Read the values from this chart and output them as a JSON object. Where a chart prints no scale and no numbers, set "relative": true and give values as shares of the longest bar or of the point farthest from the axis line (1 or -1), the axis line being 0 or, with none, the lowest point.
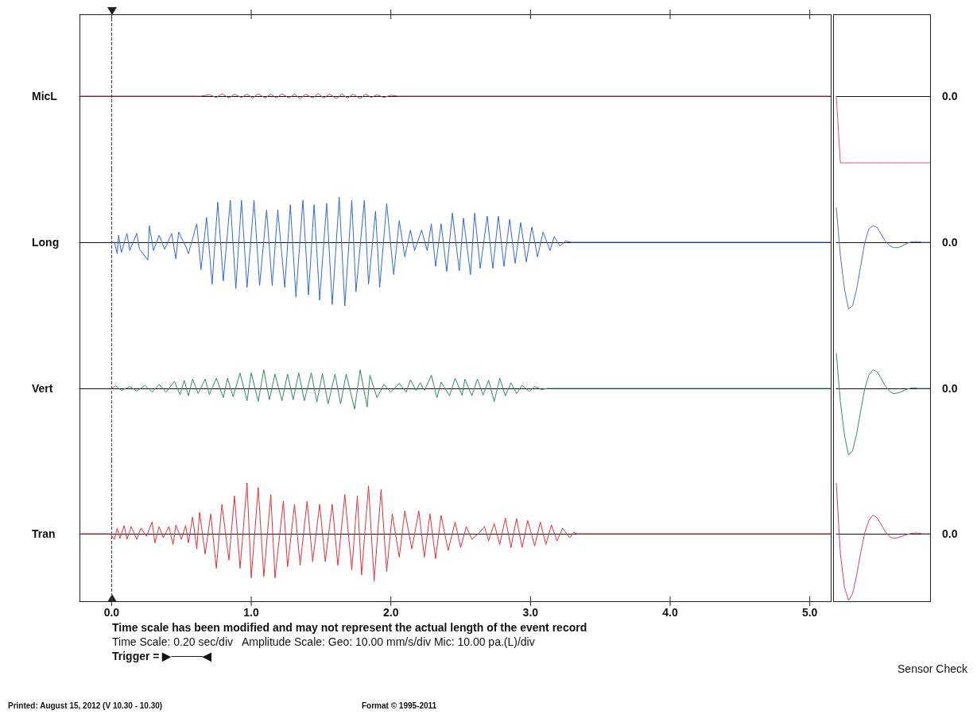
{
  "chart_data": [
    {
      "type": "line",
      "ylabel": "MicL",
      "relative": true,
      "color": "#b0406e",
      "xlim": [
        -0.23,
        5.15
      ],
      "tick_labels": false,
      "xticks": [
        {
          "value": 0,
          "label": null
        },
        {
          "value": 1,
          "label": null
        },
        {
          "value": 2,
          "label": null
        },
        {
          "value": 3,
          "label": null
        },
        {
          "value": 4,
          "label": null
        },
        {
          "value": 5,
          "label": null
        }
      ],
      "ref_lines": [
        {
          "axis": "x",
          "value": 0,
          "line_style": "dashed"
        }
      ],
      "x": [
        -0.23,
        0.64,
        0.7,
        0.75,
        0.79,
        0.84,
        0.88,
        0.93,
        0.97,
        1.01,
        1.05,
        1.1,
        1.14,
        1.18,
        1.22,
        1.27,
        1.31,
        1.35,
        1.39,
        1.44,
        1.48,
        1.52,
        1.56,
        1.61,
        1.65,
        1.69,
        1.73,
        1.78,
        1.82,
        1.86,
        1.9,
        1.95,
        2.0,
        2.05,
        5.15
      ],
      "values": [
        0,
        0,
        0.6,
        -0.6,
        1,
        -0.8,
        0.8,
        -0.6,
        0.8,
        -0.8,
        1,
        -0.8,
        0.8,
        -0.8,
        1,
        -0.8,
        0.8,
        -1,
        0.8,
        -0.8,
        1,
        -0.8,
        0.8,
        -1,
        0.8,
        -0.8,
        0.8,
        -1,
        0.8,
        -0.6,
        0.6,
        -0.6,
        0.4,
        0,
        0
      ]
    },
    {
      "type": "line",
      "ylabel": "Long",
      "relative": true,
      "color": "#2f6bd0",
      "xlim": [
        -0.23,
        5.15
      ],
      "tick_labels": false,
      "ref_lines": [
        {
          "axis": "x",
          "value": 0,
          "line_style": "dashed"
        }
      ],
      "x": [
        0,
        0.02,
        0.04,
        0.05,
        0.07,
        0.11,
        0.13,
        0.18,
        0.2,
        0.26,
        0.27,
        0.3,
        0.34,
        0.38,
        0.43,
        0.46,
        0.48,
        0.53,
        0.55,
        0.61,
        0.64,
        0.68,
        0.72,
        0.76,
        0.8,
        0.85,
        0.89,
        0.93,
        0.97,
        1.02,
        1.06,
        1.11,
        1.15,
        1.19,
        1.24,
        1.28,
        1.32,
        1.37,
        1.41,
        1.45,
        1.49,
        1.54,
        1.58,
        1.63,
        1.67,
        1.72,
        1.75,
        1.81,
        1.84,
        1.89,
        1.92,
        1.97,
        2.02,
        2.06,
        2.1,
        2.14,
        2.17,
        2.22,
        2.26,
        2.29,
        2.32,
        2.36,
        2.4,
        2.44,
        2.49,
        2.52,
        2.57,
        2.6,
        2.64,
        2.69,
        2.73,
        2.77,
        2.81,
        2.85,
        2.89,
        2.93,
        2.97,
        3.01,
        3.05,
        3.09,
        3.14,
        3.17,
        3.21,
        3.25,
        3.29,
        5.15
      ],
      "values": [
        0,
        0,
        -0.18,
        0.11,
        -0.16,
        0.14,
        -0.13,
        0.14,
        -0.11,
        -0.28,
        0.26,
        -0.13,
        0.11,
        -0.11,
        0.14,
        -0.26,
        0.16,
        -0.06,
        -0.18,
        0.29,
        -0.43,
        0.39,
        -0.66,
        0.63,
        -0.61,
        0.66,
        -0.73,
        0.66,
        -0.71,
        0.66,
        -0.68,
        0.51,
        -0.68,
        0.51,
        -0.71,
        0.59,
        -0.86,
        0.66,
        -0.83,
        0.59,
        -0.91,
        0.61,
        -0.98,
        0.71,
        -1,
        0.66,
        -0.78,
        0.66,
        -0.66,
        0.49,
        -0.71,
        0.61,
        -0.51,
        0.34,
        -0.23,
        0.19,
        -0.13,
        0.19,
        -0.13,
        0.29,
        -0.38,
        0.29,
        -0.46,
        0.46,
        -0.45,
        0.38,
        -0.51,
        0.46,
        -0.41,
        0.41,
        -0.41,
        0.41,
        -0.38,
        0.36,
        -0.33,
        0.31,
        -0.31,
        0.24,
        -0.23,
        0.16,
        -0.13,
        0.09,
        -0.06,
        0.02,
        0,
        0
      ]
    },
    {
      "type": "line",
      "ylabel": "Vert",
      "relative": true,
      "color": "#2e8b5a",
      "xlim": [
        -0.23,
        5.15
      ],
      "tick_labels": false,
      "ref_lines": [
        {
          "axis": "x",
          "value": 0,
          "line_style": "dashed"
        }
      ],
      "x": [
        0,
        0.03,
        0.07,
        0.13,
        0.18,
        0.24,
        0.29,
        0.34,
        0.39,
        0.45,
        0.49,
        0.52,
        0.55,
        0.58,
        0.62,
        0.67,
        0.7,
        0.75,
        0.8,
        0.83,
        0.87,
        0.92,
        0.97,
        1.0,
        1.05,
        1.09,
        1.13,
        1.17,
        1.22,
        1.26,
        1.3,
        1.34,
        1.38,
        1.43,
        1.47,
        1.51,
        1.55,
        1.6,
        1.64,
        1.68,
        1.74,
        1.78,
        1.83,
        1.85,
        1.9,
        1.95,
        2.0,
        2.06,
        2.11,
        2.14,
        2.18,
        2.21,
        2.24,
        2.29,
        2.33,
        2.36,
        2.42,
        2.46,
        2.51,
        2.53,
        2.58,
        2.62,
        2.66,
        2.7,
        2.74,
        2.78,
        2.82,
        2.86,
        2.9,
        2.94,
        2.99,
        3.03,
        3.08,
        3.12,
        5.15
      ],
      "values": [
        0,
        0.12,
        -0.1,
        0.09,
        -0.13,
        0.15,
        -0.18,
        0.19,
        -0.18,
        0.34,
        -0.3,
        0.39,
        -0.36,
        0.45,
        -0.25,
        0.45,
        -0.3,
        0.49,
        -0.45,
        0.49,
        -0.4,
        0.75,
        -0.6,
        0.75,
        -0.63,
        0.9,
        -0.55,
        0.69,
        -0.6,
        0.69,
        -0.55,
        0.75,
        -0.6,
        0.75,
        -0.66,
        0.72,
        -0.75,
        0.69,
        -0.75,
        0.69,
        -1,
        0.9,
        -0.9,
        0.64,
        -0.45,
        0.19,
        -0.18,
        0.24,
        -0.18,
        0.42,
        -0.1,
        0.27,
        -0.1,
        0.64,
        -0.45,
        0.3,
        -0.36,
        0.49,
        -0.33,
        0.45,
        -0.36,
        0.45,
        -0.33,
        0.39,
        -0.63,
        0.49,
        -0.36,
        0.27,
        -0.25,
        0.15,
        -0.15,
        0.09,
        -0.06,
        0,
        0
      ]
    },
    {
      "type": "line",
      "ylabel": "Tran",
      "relative": true,
      "color": "#e0303a",
      "xlim": [
        -0.23,
        5.15
      ],
      "tick_labels": "x",
      "xticks": [
        {
          "value": 0,
          "label": "0.0"
        },
        {
          "value": 1,
          "label": "1.0"
        },
        {
          "value": 2,
          "label": "2.0"
        },
        {
          "value": 3,
          "label": "3.0"
        },
        {
          "value": 4,
          "label": "4.0"
        },
        {
          "value": 5,
          "label": "5.0"
        }
      ],
      "ref_lines": [
        {
          "axis": "x",
          "value": 0,
          "line_style": "dashed"
        }
      ],
      "annotations": [
        "Time scale has been modified and may not represent the actual length of the event record",
        "Time Scale: 0.20 sec/div   Amplitude Scale: Geo: 10.00 mm/s/div Mic: 10.00 pa.(L)/div",
        "Trigger = ▶────◀",
        "Printed: August 15, 2012 (V 10.30 - 10.30)",
        "Format © 1995-2011"
      ],
      "x": [
        -0.23,
        -0.01,
        0.02,
        0.04,
        0.06,
        0.09,
        0.11,
        0.14,
        0.18,
        0.21,
        0.25,
        0.29,
        0.31,
        0.34,
        0.37,
        0.41,
        0.44,
        0.46,
        0.5,
        0.53,
        0.55,
        0.58,
        0.61,
        0.63,
        0.67,
        0.71,
        0.75,
        0.79,
        0.84,
        0.88,
        0.92,
        0.97,
        1.0,
        1.05,
        1.09,
        1.14,
        1.17,
        1.23,
        1.26,
        1.31,
        1.35,
        1.4,
        1.44,
        1.49,
        1.53,
        1.58,
        1.62,
        1.67,
        1.72,
        1.76,
        1.79,
        1.84,
        1.88,
        1.93,
        1.97,
        2.01,
        2.06,
        2.1,
        2.15,
        2.2,
        2.24,
        2.28,
        2.32,
        2.36,
        2.41,
        2.46,
        2.5,
        2.54,
        2.58,
        2.63,
        2.67,
        2.7,
        2.74,
        2.78,
        2.82,
        2.86,
        2.9,
        2.94,
        2.98,
        3.03,
        3.07,
        3.11,
        3.15,
        3.19,
        3.23,
        3.28,
        3.31,
        3.33,
        5.15
      ],
      "values": [
        0,
        0,
        -0.11,
        0.11,
        -0.09,
        0.16,
        -0.11,
        0.14,
        -0.11,
        0.11,
        -0.05,
        0.23,
        -0.18,
        0.14,
        -0.08,
        0.14,
        -0.21,
        0.17,
        -0.11,
        0.16,
        -0.18,
        0.33,
        -0.3,
        0.42,
        -0.4,
        0.39,
        -0.68,
        0.58,
        -0.52,
        0.74,
        -0.68,
        1,
        -0.87,
        0.91,
        -0.84,
        0.77,
        -0.87,
        0.64,
        -0.65,
        0.58,
        -0.62,
        0.64,
        -0.55,
        0.58,
        -0.55,
        0.58,
        -0.62,
        0.77,
        -0.71,
        0.74,
        -0.81,
        0.94,
        -0.93,
        0.87,
        -0.74,
        0.39,
        -0.46,
        0.45,
        -0.3,
        0.45,
        -0.46,
        0.39,
        -0.49,
        0.36,
        -0.33,
        0.23,
        -0.27,
        0.14,
        -0.11,
        0.01,
        0.14,
        -0.14,
        0.2,
        -0.21,
        0.31,
        -0.27,
        0.3,
        -0.27,
        0.26,
        -0.24,
        0.23,
        -0.21,
        0.17,
        -0.14,
        0.11,
        -0.08,
        0.03,
        0,
        0
      ]
    },
    {
      "type": "line",
      "relative": true,
      "color": "#e0507a",
      "annotations": [
        "0.0"
      ],
      "categories": [
        null,
        null,
        null,
        null,
        null,
        null,
        null,
        null,
        null,
        null,
        null,
        null,
        null,
        null,
        null,
        null,
        null,
        null,
        null,
        null,
        null,
        null,
        null,
        null
      ],
      "values": [
        0,
        -1,
        -1,
        -1,
        -1,
        -1,
        -1,
        -1,
        -1,
        -1,
        -1,
        -1,
        -1,
        -1,
        -1,
        -1,
        -1,
        -1,
        -1,
        -1,
        -1,
        -1,
        -1,
        -1
      ]
    },
    {
      "type": "line",
      "relative": true,
      "color": "#5a6fb0",
      "annotations": [
        "0.0"
      ],
      "categories": [
        null,
        null,
        null,
        null,
        null,
        null,
        null,
        null,
        null,
        null,
        null,
        null,
        null,
        null,
        null,
        null,
        null,
        null,
        null,
        null,
        null,
        null,
        null,
        null
      ],
      "values": [
        0.52,
        -0.2,
        -0.7,
        -1,
        -0.95,
        -0.7,
        -0.35,
        0,
        0.2,
        0.25,
        0.22,
        0.12,
        0.02,
        -0.05,
        -0.08,
        -0.08,
        -0.06,
        -0.03,
        0,
        0.01,
        0.01,
        0,
        0,
        0
      ]
    },
    {
      "type": "line",
      "relative": true,
      "color": "#3a8a6a",
      "annotations": [
        "0.0"
      ],
      "categories": [
        null,
        null,
        null,
        null,
        null,
        null,
        null,
        null,
        null,
        null,
        null,
        null,
        null,
        null,
        null,
        null,
        null,
        null,
        null,
        null,
        null,
        null,
        null,
        null
      ],
      "values": [
        0.53,
        -0.2,
        -0.7,
        -1,
        -0.93,
        -0.68,
        -0.33,
        0,
        0.2,
        0.28,
        0.25,
        0.15,
        0.04,
        -0.04,
        -0.08,
        -0.07,
        -0.05,
        -0.02,
        0,
        0.01,
        0,
        0,
        0,
        0
      ]
    },
    {
      "type": "line",
      "relative": true,
      "color": "#d04060",
      "annotations": [
        "0.0"
      ],
      "xlabel": "Sensor Check",
      "categories": [
        null,
        null,
        null,
        null,
        null,
        null,
        null,
        null,
        null,
        null,
        null,
        null,
        null,
        null,
        null,
        null,
        null,
        null,
        null,
        null,
        null,
        null,
        null,
        null
      ],
      "values": [
        0.76,
        -0.3,
        -0.8,
        -1,
        -0.9,
        -0.62,
        -0.28,
        0.02,
        0.2,
        0.28,
        0.24,
        0.14,
        0.03,
        -0.04,
        -0.07,
        -0.06,
        -0.04,
        -0.02,
        0,
        0.01,
        0.01,
        0,
        0,
        0
      ]
    }
  ]
}
